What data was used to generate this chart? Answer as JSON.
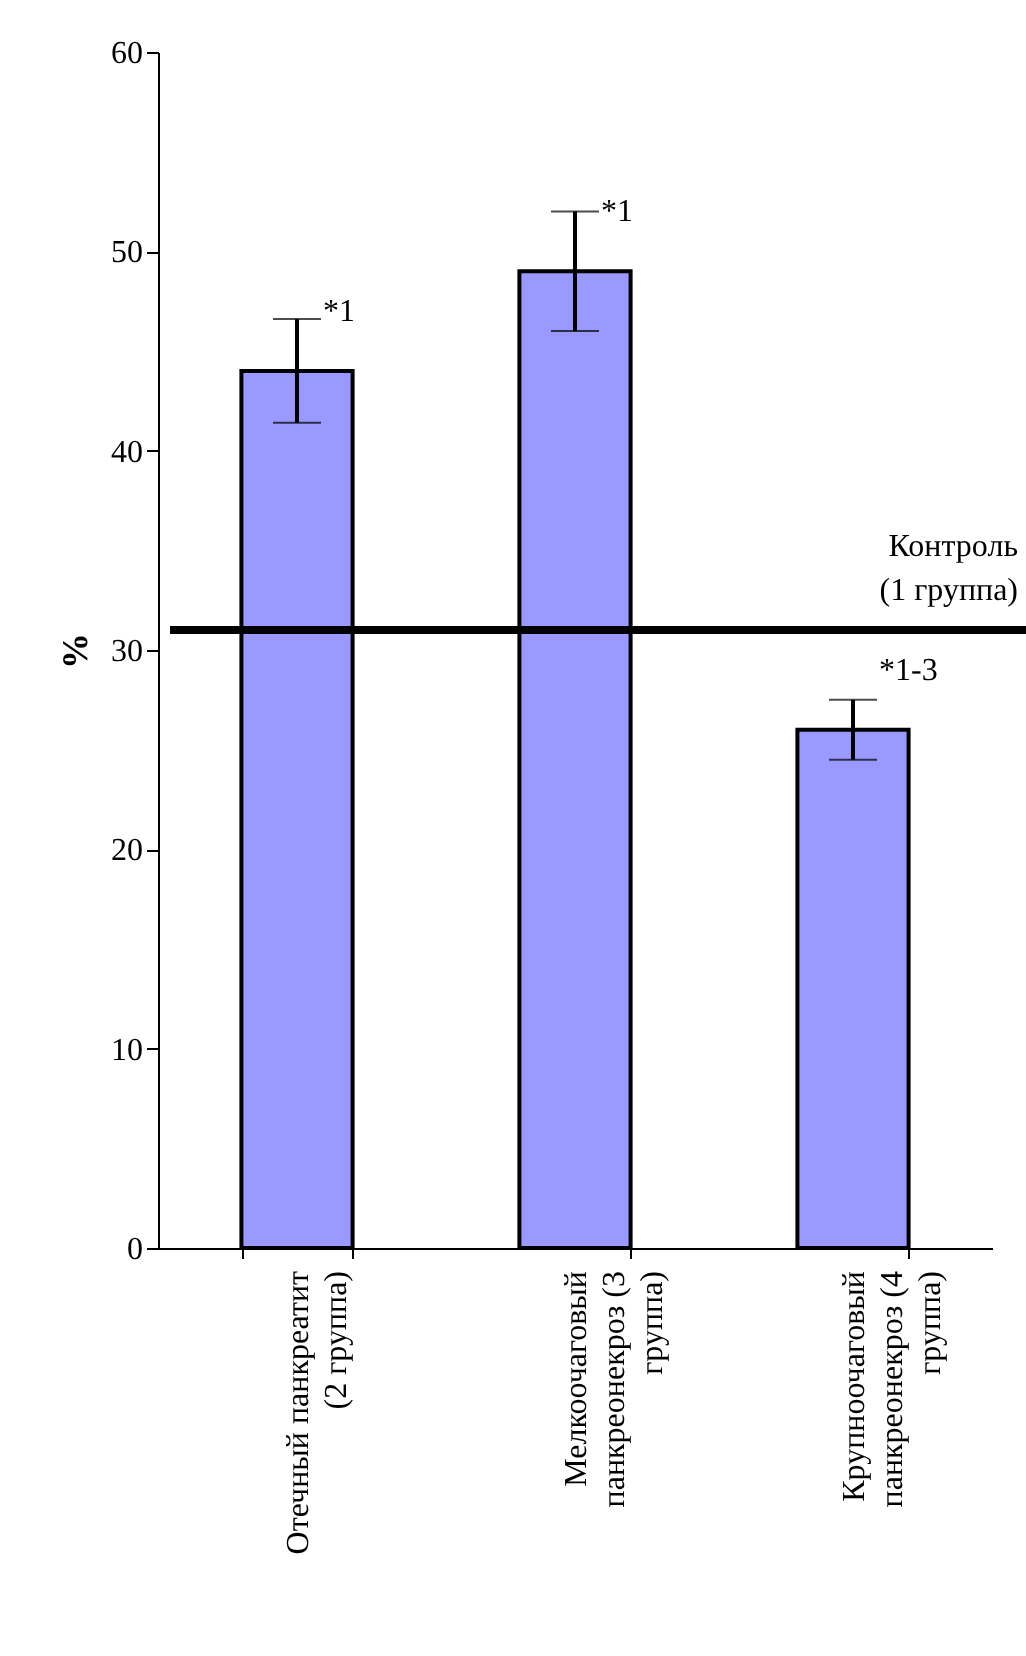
{
  "chart_data": {
    "type": "bar",
    "ylabel": "%",
    "categories": [
      "Отечный панкреатит (2 группа)",
      "Мелкоочаговый панкреонекроз (3 группа)",
      "Крупноочаговый панкреонекроз (4 группа)"
    ],
    "values": [
      44,
      49,
      26
    ],
    "color": "#9999ff",
    "errors": [
      2.6,
      3,
      1.5
    ],
    "ylim": [
      0,
      60
    ],
    "yticks": [
      0,
      10,
      20,
      30,
      40,
      50,
      60
    ],
    "grid": false,
    "ref_lines": [
      {
        "axis": "y",
        "value": 31,
        "label": "Контроль (1 группа)",
        "color": "#000000"
      }
    ],
    "annotations": [
      {
        "text": "*1",
        "x": "Отечный панкреатит (2 группа)",
        "y": 44
      },
      {
        "text": "*1",
        "x": "Мелкоочаговый панкреонекроз (3 группа)",
        "y": 49
      },
      {
        "text": "*1-3",
        "x": "Крупноочаговый панкреонекроз (4 группа)",
        "y": 26
      }
    ]
  }
}
